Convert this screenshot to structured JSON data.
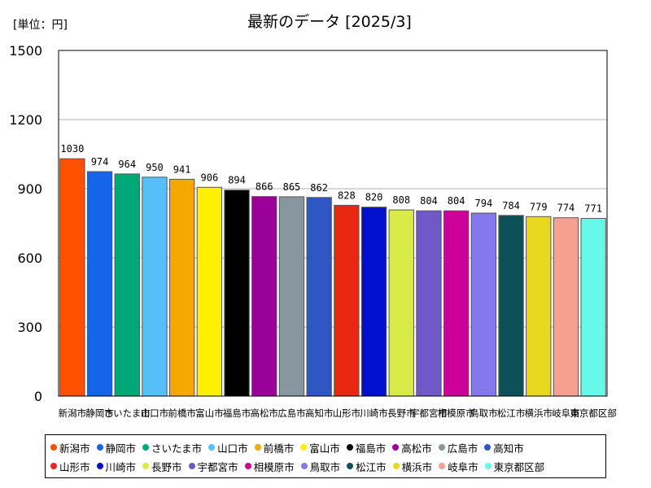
{
  "chart_data": {
    "type": "bar",
    "title": "最新のデータ [2025/3]",
    "unit_label": "[単位：円]",
    "xlabel": "",
    "ylabel": "",
    "ylim": [
      0,
      1500
    ],
    "yticks": [
      0,
      300,
      600,
      900,
      1200,
      1500
    ],
    "grid": true,
    "legend_position": "bottom",
    "categories": [
      "新潟市",
      "静岡市",
      "さいたま市",
      "山口市",
      "前橋市",
      "富山市",
      "福島市",
      "高松市",
      "広島市",
      "高知市",
      "山形市",
      "川崎市",
      "長野市",
      "宇都宮市",
      "相模原市",
      "鳥取市",
      "松江市",
      "横浜市",
      "岐阜市",
      "東京都区部"
    ],
    "values": [
      1030,
      974,
      964,
      950,
      941,
      906,
      894,
      866,
      865,
      862,
      828,
      820,
      808,
      804,
      804,
      794,
      784,
      779,
      774,
      771
    ],
    "data_labels": [
      "1030",
      "974",
      "964",
      "950",
      "941",
      "906",
      "894",
      "866",
      "865",
      "862",
      "828",
      "820",
      "808",
      "804",
      "804",
      "794",
      "784",
      "779",
      "774",
      "771"
    ],
    "colors": [
      "#ff5000",
      "#1565e8",
      "#00a878",
      "#55c0f8",
      "#f5a800",
      "#fff000",
      "#000000",
      "#9a009a",
      "#8896a0",
      "#2e57c4",
      "#e82810",
      "#0010cc",
      "#d8ea48",
      "#7058c8",
      "#cc0099",
      "#8478ee",
      "#0c5058",
      "#e8d820",
      "#f5a090",
      "#66f8e8"
    ]
  }
}
